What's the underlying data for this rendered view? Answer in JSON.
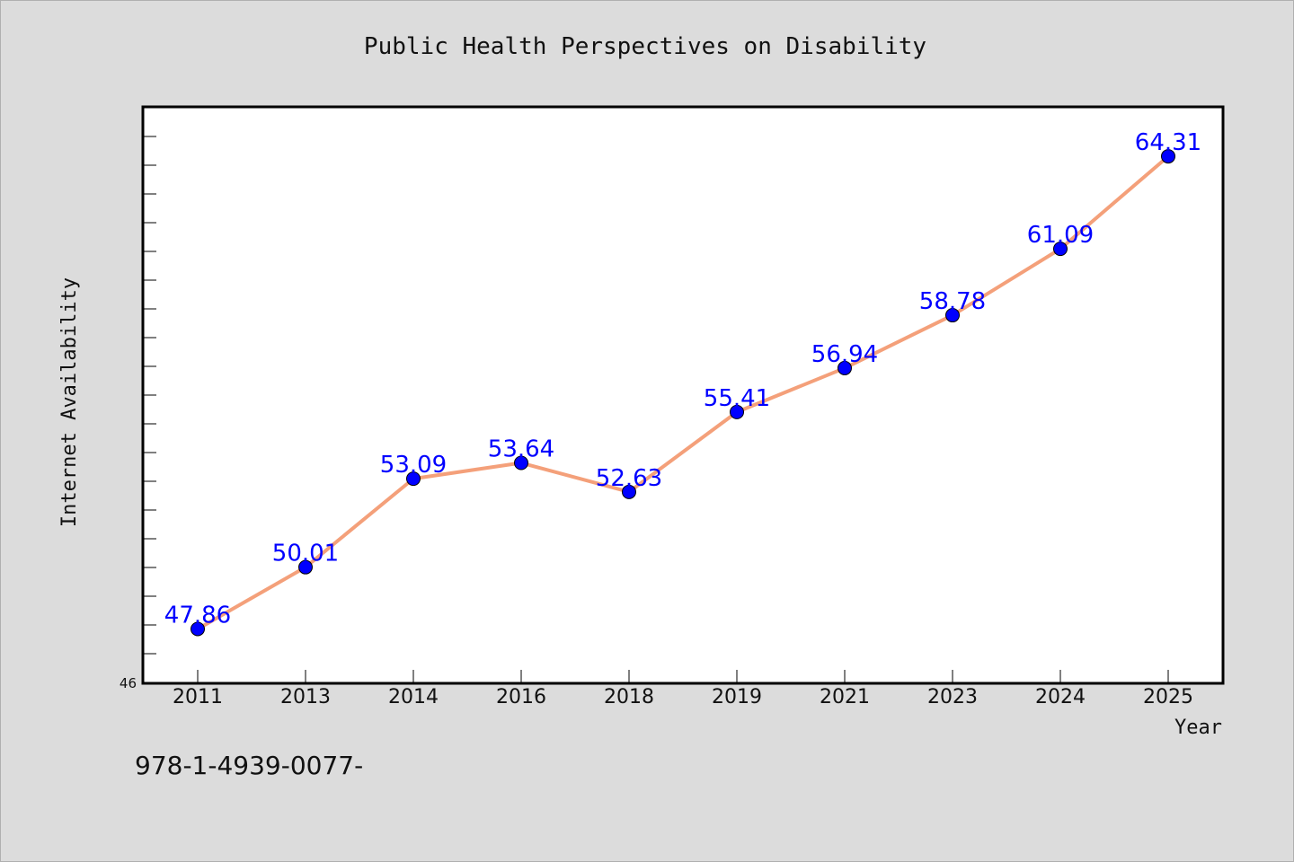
{
  "footer_code": "978-1-4939-0077-",
  "chart_data": {
    "type": "line",
    "title": "Public Health Perspectives on Disability",
    "xlabel": "Year",
    "ylabel": "Internet Availability",
    "categories": [
      "2011",
      "2013",
      "2014",
      "2016",
      "2018",
      "2019",
      "2021",
      "2023",
      "2024",
      "2025"
    ],
    "values": [
      47.86,
      50.01,
      53.09,
      53.64,
      52.63,
      55.41,
      56.94,
      58.78,
      61.09,
      64.31
    ],
    "data_labels": [
      "47.86",
      "50.01",
      "53.09",
      "53.64",
      "52.63",
      "55.41",
      "56.94",
      "58.78",
      "61.09",
      "64.31"
    ],
    "yticks": [
      "46"
    ],
    "ylim": [
      46,
      66
    ],
    "grid": false,
    "line_color": "#f4a07a",
    "marker_color": "#0000ff",
    "label_color": "#0000ff"
  }
}
